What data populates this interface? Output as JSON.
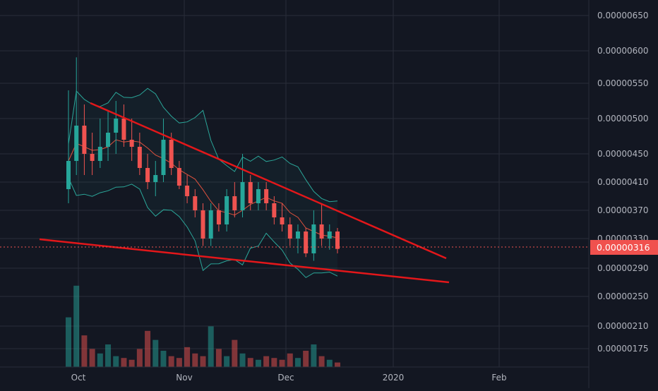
{
  "chart_data": {
    "type": "candlestick",
    "title": "",
    "price_axis": {
      "labels": [
        "0.00000650",
        "0.00000600",
        "0.00000550",
        "0.00000500",
        "0.00000450",
        "0.00000410",
        "0.00000370",
        "0.00000330",
        "0.00000290",
        "0.00000250",
        "0.00000210",
        "0.00000175"
      ],
      "last_price": "0.00000316",
      "last_price_color": "#f0514e"
    },
    "time_axis": {
      "labels": [
        "Oct",
        "Nov",
        "Dec",
        "2020",
        "Feb"
      ]
    },
    "colors": {
      "background": "#131722",
      "grid": "#2a2e39",
      "up": "#26a69a",
      "down": "#ef5350",
      "trendline": "#e3171a",
      "bollinger": "#2ba79a",
      "moving_average": "#e0523e",
      "axis_text": "#b2b5be"
    },
    "annotations": [
      {
        "type": "trendline",
        "name": "upper-resistance",
        "from": [
          "Sep 30",
          "0.00000522"
        ],
        "to": [
          "Jan 19",
          "0.00000305"
        ]
      },
      {
        "type": "trendline",
        "name": "lower-support",
        "from": [
          "Sep 21",
          "0.00000319"
        ],
        "to": [
          "Jan 20",
          "0.00000272"
        ]
      }
    ],
    "candles_approx": [
      {
        "o": 4e-06,
        "h": 5.4e-06,
        "l": 3.8e-06,
        "c": 4.4e-06
      },
      {
        "o": 4.4e-06,
        "h": 5.9e-06,
        "l": 4.2e-06,
        "c": 4.9e-06
      },
      {
        "o": 4.9e-06,
        "h": 5.2e-06,
        "l": 4.2e-06,
        "c": 4.5e-06
      },
      {
        "o": 4.5e-06,
        "h": 4.8e-06,
        "l": 4.2e-06,
        "c": 4.4e-06
      },
      {
        "o": 4.4e-06,
        "h": 5e-06,
        "l": 4.3e-06,
        "c": 4.6e-06
      },
      {
        "o": 4.6e-06,
        "h": 5.1e-06,
        "l": 4.4e-06,
        "c": 4.8e-06
      },
      {
        "o": 4.8e-06,
        "h": 5.25e-06,
        "l": 4.5e-06,
        "c": 5e-06
      },
      {
        "o": 5e-06,
        "h": 5.2e-06,
        "l": 4.6e-06,
        "c": 4.7e-06
      },
      {
        "o": 4.7e-06,
        "h": 5e-06,
        "l": 4.4e-06,
        "c": 4.6e-06
      },
      {
        "o": 4.6e-06,
        "h": 4.8e-06,
        "l": 4.2e-06,
        "c": 4.3e-06
      },
      {
        "o": 4.3e-06,
        "h": 4.5e-06,
        "l": 4e-06,
        "c": 4.1e-06
      },
      {
        "o": 4.1e-06,
        "h": 4.4e-06,
        "l": 3.9e-06,
        "c": 4.2e-06
      },
      {
        "o": 4.2e-06,
        "h": 5e-06,
        "l": 4.1e-06,
        "c": 4.7e-06
      },
      {
        "o": 4.7e-06,
        "h": 4.8e-06,
        "l": 4.2e-06,
        "c": 4.3e-06
      },
      {
        "o": 4.3e-06,
        "h": 4.4e-06,
        "l": 4e-06,
        "c": 4.05e-06
      },
      {
        "o": 4.05e-06,
        "h": 4.2e-06,
        "l": 3.8e-06,
        "c": 3.9e-06
      },
      {
        "o": 3.9e-06,
        "h": 4e-06,
        "l": 3.6e-06,
        "c": 3.7e-06
      },
      {
        "o": 3.7e-06,
        "h": 3.8e-06,
        "l": 3.2e-06,
        "c": 3.3e-06
      },
      {
        "o": 3.3e-06,
        "h": 3.8e-06,
        "l": 3.2e-06,
        "c": 3.7e-06
      },
      {
        "o": 3.7e-06,
        "h": 3.8e-06,
        "l": 3.4e-06,
        "c": 3.5e-06
      },
      {
        "o": 3.5e-06,
        "h": 4e-06,
        "l": 3.4e-06,
        "c": 3.9e-06
      },
      {
        "o": 3.9e-06,
        "h": 4.1e-06,
        "l": 3.6e-06,
        "c": 3.7e-06
      },
      {
        "o": 3.7e-06,
        "h": 4.5e-06,
        "l": 3.6e-06,
        "c": 4.1e-06
      },
      {
        "o": 4.1e-06,
        "h": 4.2e-06,
        "l": 3.7e-06,
        "c": 3.8e-06
      },
      {
        "o": 3.8e-06,
        "h": 4.1e-06,
        "l": 3.7e-06,
        "c": 4e-06
      },
      {
        "o": 4e-06,
        "h": 4.1e-06,
        "l": 3.7e-06,
        "c": 3.8e-06
      },
      {
        "o": 3.8e-06,
        "h": 3.9e-06,
        "l": 3.5e-06,
        "c": 3.6e-06
      },
      {
        "o": 3.6e-06,
        "h": 3.8e-06,
        "l": 3.4e-06,
        "c": 3.5e-06
      },
      {
        "o": 3.5e-06,
        "h": 3.6e-06,
        "l": 3.2e-06,
        "c": 3.3e-06
      },
      {
        "o": 3.3e-06,
        "h": 3.5e-06,
        "l": 3.1e-06,
        "c": 3.4e-06
      },
      {
        "o": 3.4e-06,
        "h": 3.45e-06,
        "l": 3.05e-06,
        "c": 3.1e-06
      },
      {
        "o": 3.1e-06,
        "h": 3.7e-06,
        "l": 3e-06,
        "c": 3.5e-06
      },
      {
        "o": 3.5e-06,
        "h": 3.8e-06,
        "l": 3.2e-06,
        "c": 3.3e-06
      },
      {
        "o": 3.3e-06,
        "h": 3.5e-06,
        "l": 3.15e-06,
        "c": 3.4e-06
      },
      {
        "o": 3.4e-06,
        "h": 3.45e-06,
        "l": 3.1e-06,
        "c": 3.16e-06
      }
    ],
    "volume_approx": [
      0.55,
      0.9,
      0.35,
      0.2,
      0.15,
      0.25,
      0.12,
      0.1,
      0.08,
      0.2,
      0.4,
      0.3,
      0.18,
      0.12,
      0.1,
      0.22,
      0.15,
      0.12,
      0.45,
      0.2,
      0.12,
      0.3,
      0.15,
      0.1,
      0.08,
      0.12,
      0.1,
      0.08,
      0.15,
      0.1,
      0.18,
      0.25,
      0.12,
      0.08,
      0.05
    ]
  }
}
